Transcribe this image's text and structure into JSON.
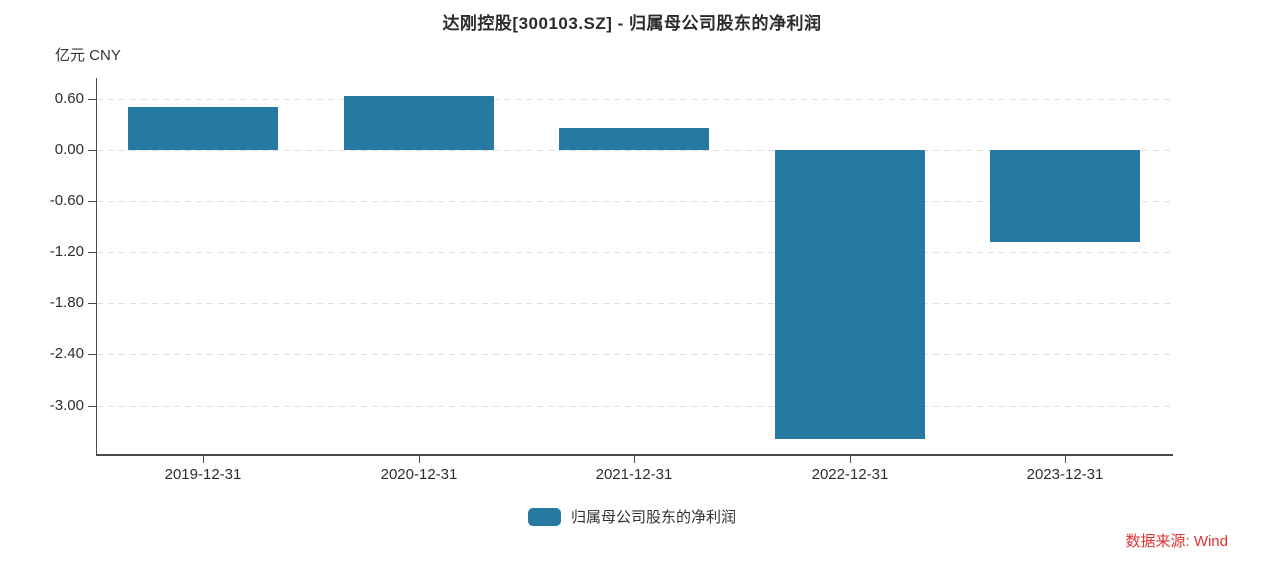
{
  "title": "达刚控股[300103.SZ] - 归属母公司股东的净利润",
  "unit_label": "亿元 CNY",
  "source_label": "数据来源: Wind",
  "legend": {
    "label": "归属母公司股东的净利润"
  },
  "colors": {
    "bar": "#2679a1",
    "source_text": "#e03131",
    "axis": "#4a4a4a",
    "grid": "#dfdfdf",
    "text": "#2e2e2e"
  },
  "chart_data": {
    "type": "bar",
    "title": "达刚控股[300103.SZ] - 归属母公司股东的净利润",
    "categories": [
      "2019-12-31",
      "2020-12-31",
      "2021-12-31",
      "2022-12-31",
      "2023-12-31"
    ],
    "series": [
      {
        "name": "归属母公司股东的净利润",
        "values": [
          0.5,
          0.63,
          0.26,
          -3.39,
          -1.08
        ]
      }
    ],
    "xlabel": "",
    "ylabel": "亿元 CNY",
    "ylim": [
      -3.58,
      0.85
    ],
    "ytick_labels": [
      "0.60",
      "0.00",
      "-0.60",
      "-1.20",
      "-1.80",
      "-2.40",
      "-3.00"
    ],
    "grid": "horizontal-dashed",
    "legend_position": "bottom",
    "bar_color": "#2679a1"
  }
}
